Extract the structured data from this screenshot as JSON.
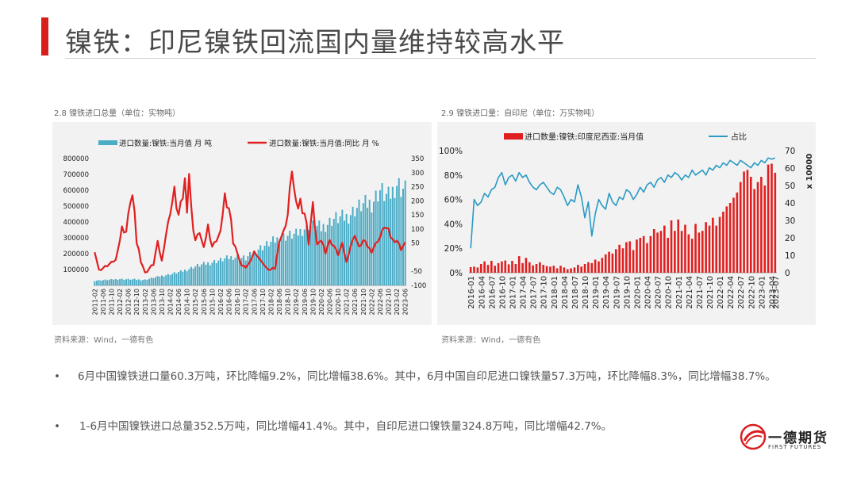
{
  "page": {
    "title": "镍铁：印尼镍铁回流国内量维持较高水平",
    "brand_color": "#d91e1e"
  },
  "charts_text": {
    "left_caption": "2.8 镍铁进口总量（单位：实物吨）",
    "left_source": "资料来源：Wind，一德有色",
    "right_caption": "2.9 镍铁进口量：自印尼（单位：万实物吨）",
    "right_source": "资料来源：Wind，一德有色"
  },
  "bullets": [
    "6月中国镍铁进口量60.3万吨，环比降幅9.2%，同比增幅38.6%。其中，6月中国自印尼进口镍铁量57.3万吨，环比降幅8.3%，同比增幅38.7%。",
    "1-6月中国镍铁进口总量352.5万吨，同比增幅41.4%。其中，自印尼进口镍铁量324.8万吨，同比增幅42.7%。"
  ],
  "logo": {
    "name": "一德期货",
    "sub": "FIRST FUTURES"
  },
  "chart_data": [
    {
      "type": "bar+line",
      "title": "",
      "x_start": "2011-02",
      "x_end": "2023-06",
      "x_tick_labels": [
        "2011-02",
        "2011-06",
        "2011-10",
        "2012-02",
        "2012-06",
        "2012-10",
        "2013-02",
        "2013-06",
        "2013-10",
        "2014-02",
        "2014-06",
        "2014-10",
        "2015-02",
        "2015-06",
        "2015-10",
        "2016-02",
        "2016-06",
        "2016-10",
        "2017-02",
        "2017-06",
        "2017-10",
        "2018-02",
        "2018-06",
        "2018-10",
        "2019-02",
        "2019-06",
        "2019-10",
        "2020-02",
        "2020-06",
        "2020-10",
        "2021-02",
        "2021-06",
        "2021-10",
        "2022-02",
        "2022-06",
        "2022-10",
        "2023-02",
        "2023-06"
      ],
      "left_axis": {
        "min": 0,
        "max": 800000,
        "ticks": [
          100000,
          200000,
          300000,
          400000,
          500000,
          600000,
          700000,
          800000
        ],
        "tick_labels": [
          "100000",
          "200000",
          "300000",
          "400000",
          "500000",
          "600000",
          "700000",
          "800000"
        ]
      },
      "right_axis": {
        "min": -100,
        "max": 350,
        "ticks": [
          -100,
          -50,
          50,
          100,
          150,
          200,
          250,
          300,
          350
        ],
        "tick_labels": [
          "-100",
          "-50",
          "50",
          "100",
          "150",
          "200",
          "250",
          "300",
          "350"
        ]
      },
      "legend": {
        "placement": "top"
      },
      "series": [
        {
          "name": "进口数量:镍铁:当月值  月  吨",
          "kind": "bar",
          "axis": "left",
          "color": "#4bacc6",
          "anchors": [
            [
              0,
              30000
            ],
            [
              12,
              40000
            ],
            [
              24,
              35000
            ],
            [
              30,
              55000
            ],
            [
              36,
              70000
            ],
            [
              42,
              90000
            ],
            [
              48,
              120000
            ],
            [
              54,
              140000
            ],
            [
              60,
              160000
            ],
            [
              66,
              180000
            ],
            [
              72,
              170000
            ],
            [
              78,
              230000
            ],
            [
              84,
              270000
            ],
            [
              90,
              310000
            ],
            [
              96,
              320000
            ],
            [
              102,
              380000
            ],
            [
              108,
              360000
            ],
            [
              114,
              420000
            ],
            [
              120,
              430000
            ],
            [
              126,
              500000
            ],
            [
              132,
              520000
            ],
            [
              136,
              600000
            ],
            [
              140,
              550000
            ],
            [
              144,
              640000
            ],
            [
              148,
              600000
            ]
          ]
        },
        {
          "name": "进口数量:镍铁:当月值:同比  月  %",
          "kind": "line",
          "axis": "right",
          "color": "#e02020",
          "anchors": [
            [
              0,
              20
            ],
            [
              2,
              -45
            ],
            [
              5,
              -35
            ],
            [
              8,
              -20
            ],
            [
              10,
              -10
            ],
            [
              12,
              60
            ],
            [
              13,
              105
            ],
            [
              15,
              90
            ],
            [
              17,
              200
            ],
            [
              18,
              215
            ],
            [
              20,
              60
            ],
            [
              22,
              -10
            ],
            [
              24,
              -55
            ],
            [
              26,
              -40
            ],
            [
              28,
              -25
            ],
            [
              30,
              55
            ],
            [
              32,
              -15
            ],
            [
              34,
              80
            ],
            [
              36,
              160
            ],
            [
              38,
              235
            ],
            [
              40,
              145
            ],
            [
              42,
              215
            ],
            [
              43,
              270
            ],
            [
              44,
              190
            ],
            [
              45,
              300
            ],
            [
              46,
              160
            ],
            [
              48,
              60
            ],
            [
              50,
              90
            ],
            [
              52,
              25
            ],
            [
              54,
              115
            ],
            [
              56,
              40
            ],
            [
              58,
              60
            ],
            [
              60,
              90
            ],
            [
              62,
              225
            ],
            [
              63,
              150
            ],
            [
              64,
              180
            ],
            [
              66,
              70
            ],
            [
              68,
              10
            ],
            [
              70,
              -30
            ],
            [
              72,
              -35
            ],
            [
              74,
              -20
            ],
            [
              76,
              20
            ],
            [
              78,
              0
            ],
            [
              80,
              -20
            ],
            [
              82,
              -40
            ],
            [
              84,
              -45
            ],
            [
              86,
              -40
            ],
            [
              88,
              60
            ],
            [
              90,
              90
            ],
            [
              92,
              150
            ],
            [
              94,
              315
            ],
            [
              96,
              160
            ],
            [
              98,
              200
            ],
            [
              100,
              160
            ],
            [
              102,
              60
            ],
            [
              104,
              190
            ],
            [
              106,
              40
            ],
            [
              108,
              60
            ],
            [
              110,
              20
            ],
            [
              112,
              60
            ],
            [
              114,
              40
            ],
            [
              116,
              10
            ],
            [
              118,
              50
            ],
            [
              120,
              -20
            ],
            [
              122,
              40
            ],
            [
              124,
              80
            ],
            [
              126,
              30
            ],
            [
              128,
              60
            ],
            [
              130,
              40
            ],
            [
              132,
              20
            ],
            [
              134,
              50
            ],
            [
              136,
              70
            ],
            [
              138,
              110
            ],
            [
              140,
              90
            ],
            [
              142,
              60
            ],
            [
              144,
              60
            ],
            [
              146,
              30
            ],
            [
              148,
              50
            ]
          ]
        }
      ]
    },
    {
      "type": "bar+line",
      "title": "",
      "x_start": "2016-01",
      "x_end": "2023-07",
      "x_tick_labels": [
        "2016-01",
        "2016-04",
        "2016-07",
        "2016-10",
        "2017-01",
        "2017-04",
        "2017-07",
        "2017-10",
        "2018-01",
        "2018-04",
        "2018-07",
        "2018-10",
        "2019-01",
        "2019-04",
        "2019-07",
        "2019-10",
        "2020-01",
        "2020-04",
        "2020-07",
        "2020-10",
        "2021-01",
        "2021-04",
        "2021-07",
        "2021-10",
        "2022-01",
        "2022-04",
        "2022-07",
        "2022-10",
        "2023-01",
        "2023-04",
        "2023-07"
      ],
      "left_axis": {
        "min": 0,
        "max": 100,
        "unit": "%",
        "ticks": [
          0,
          20,
          40,
          60,
          80,
          100
        ],
        "tick_labels": [
          "0%",
          "20%",
          "40%",
          "60%",
          "80%",
          "100%"
        ]
      },
      "right_axis": {
        "min": 0,
        "max": 70,
        "ticks": [
          0,
          10,
          20,
          30,
          40,
          50,
          60,
          70
        ],
        "tick_labels": [
          "0",
          "10",
          "20",
          "30",
          "40",
          "50",
          "60",
          "70"
        ],
        "multiplier_label": "x 10000"
      },
      "legend": {
        "placement": "top"
      },
      "series": [
        {
          "name": "进口数量:镍铁:印度尼西亚:当月值",
          "kind": "bar",
          "axis": "right",
          "color": "#e02020",
          "values": [
            3.2,
            3.5,
            3.0,
            5.0,
            6.5,
            4.5,
            6.8,
            4.0,
            5.5,
            6.5,
            7.0,
            4.8,
            6.8,
            5.0,
            9.5,
            5.5,
            8.5,
            6.0,
            4.2,
            5.0,
            6.0,
            4.5,
            3.8,
            3.5,
            4.0,
            2.5,
            4.0,
            3.0,
            2.0,
            2.5,
            3.0,
            4.5,
            3.5,
            5.0,
            6.0,
            5.5,
            7.5,
            6.5,
            8.5,
            10.5,
            12.0,
            11.0,
            13.5,
            16.0,
            14.0,
            17.5,
            18.0,
            13.0,
            19.0,
            20.0,
            21.0,
            17.0,
            21.0,
            25.0,
            23.0,
            24.0,
            27.0,
            20.0,
            30.0,
            24.0,
            30.5,
            24.0,
            27.5,
            22.0,
            19.5,
            28.0,
            23.0,
            24.0,
            29.0,
            27.0,
            31.5,
            27.0,
            32.0,
            35.0,
            38.0,
            40.0,
            43.0,
            46.0,
            52.0,
            58.0,
            59.0,
            55.0,
            48.0,
            52.0,
            55.0,
            50.0,
            62.0,
            62.5,
            57.3
          ]
        },
        {
          "name": "占比",
          "kind": "line",
          "axis": "left",
          "color": "#2a9ac4",
          "values": [
            20,
            60,
            55,
            58,
            65,
            62,
            68,
            70,
            78,
            82,
            72,
            78,
            80,
            75,
            82,
            78,
            80,
            74,
            70,
            68,
            72,
            74,
            70,
            66,
            64,
            70,
            68,
            62,
            55,
            60,
            58,
            72,
            62,
            45,
            58,
            30,
            48,
            60,
            55,
            52,
            65,
            58,
            55,
            62,
            60,
            68,
            66,
            60,
            64,
            70,
            66,
            72,
            74,
            70,
            76,
            78,
            74,
            80,
            78,
            82,
            80,
            76,
            80,
            78,
            84,
            80,
            82,
            84,
            80,
            86,
            84,
            88,
            86,
            90,
            88,
            92,
            90,
            88,
            92,
            90,
            88,
            86,
            90,
            88,
            92,
            90,
            94,
            93,
            94
          ]
        }
      ]
    }
  ]
}
